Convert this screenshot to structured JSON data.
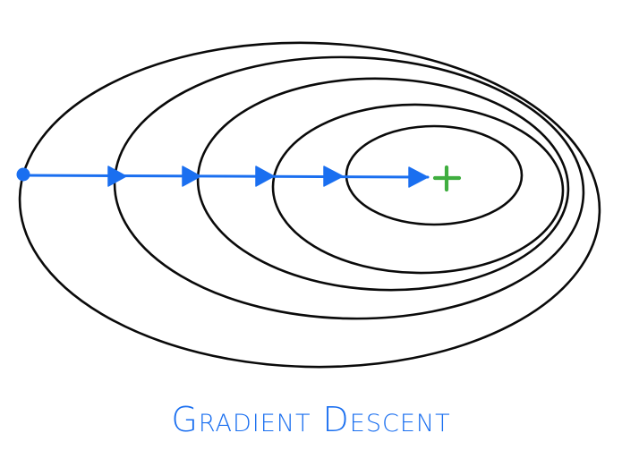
{
  "diagram": {
    "caption": "Gradient Descent",
    "colors": {
      "contour": "#0a0a0a",
      "path": "#1a6ff0",
      "minimum": "#3fae3f",
      "background": "#ffffff"
    },
    "contour_count": 5,
    "step_arrow_count": 5,
    "start_marker": "dot",
    "minimum_marker": "plus-icon"
  }
}
